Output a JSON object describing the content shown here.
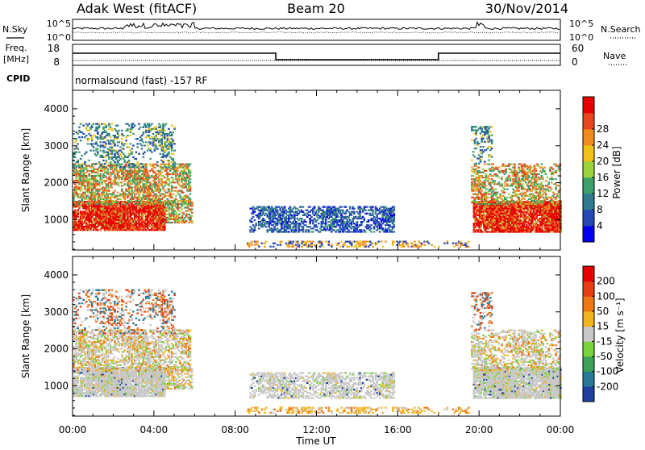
{
  "header": {
    "station": "Adak West (fitACF)",
    "beam": "Beam 20",
    "date": "30/Nov/2014"
  },
  "panels": {
    "noise_left": "N.Sky",
    "noise_right": "N.Search",
    "freq_label_1": "Freq.",
    "freq_label_2": "[MHz]",
    "nave_label": "Nave",
    "cpid_label": "CPID",
    "cpid_text": "normalsound (fast) -157 RF",
    "noise_ticks_left": [
      "10^5",
      "10^0"
    ],
    "noise_ticks_right": [
      "10^5",
      "10^0"
    ],
    "freq_ticks": [
      "18",
      "8"
    ],
    "nave_ticks": [
      "60",
      "0"
    ]
  },
  "chart_data": [
    {
      "type": "heatmap",
      "name": "power",
      "ylabel": "Slant Range [km]",
      "xlabel": "",
      "ylim": [
        180,
        4500
      ],
      "yticks": [
        1000,
        2000,
        3000,
        4000
      ],
      "xticks": [
        "00:00",
        "04:00",
        "08:00",
        "12:00",
        "16:00",
        "20:00",
        "00:00"
      ],
      "xlim_hours": [
        0,
        24
      ],
      "colorbar": {
        "label": "Power [dB]",
        "ticks": [
          "4",
          "8",
          "12",
          "16",
          "20",
          "24",
          "28"
        ],
        "colors": [
          "#0000f0",
          "#2648b4",
          "#2f7a8c",
          "#3ea06a",
          "#9cd23c",
          "#f2c21a",
          "#f08c1e",
          "#e8461e",
          "#e60000"
        ]
      }
    },
    {
      "type": "heatmap",
      "name": "velocity",
      "ylabel": "Slant Range [km]",
      "xlabel": "Time UT",
      "ylim": [
        180,
        4500
      ],
      "yticks": [
        1000,
        2000,
        3000,
        4000
      ],
      "xticks": [
        "00:00",
        "04:00",
        "08:00",
        "12:00",
        "16:00",
        "20:00",
        "00:00"
      ],
      "xlim_hours": [
        0,
        24
      ],
      "colorbar": {
        "label": "Velocity [m s⁻¹]",
        "ticks": [
          "200",
          "100",
          "50",
          "15",
          "-15",
          "-50",
          "-100",
          "-200"
        ],
        "colors": [
          "#2040a0",
          "#287896",
          "#3ca05a",
          "#7ad23c",
          "#c8c8c8",
          "#f2b41e",
          "#f07814",
          "#e83c14",
          "#e60000"
        ]
      }
    }
  ],
  "colors": {
    "ground_scatter": "#c8c8c8"
  }
}
